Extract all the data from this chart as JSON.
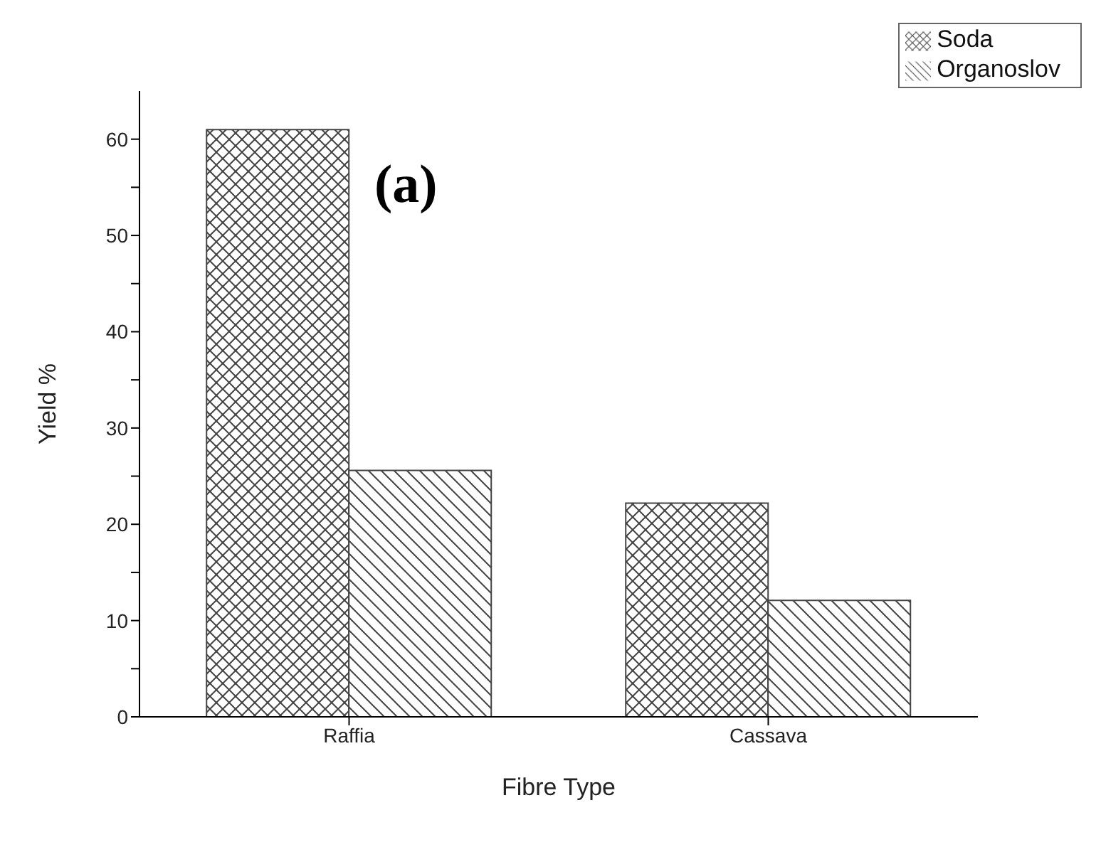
{
  "chart_data": {
    "type": "bar",
    "xlabel": "Fibre Type",
    "ylabel": "Yield %",
    "categories": [
      "Raffia",
      "Cassava"
    ],
    "series": [
      {
        "name": "Soda",
        "color": "#444444",
        "values": [
          61,
          22.2
        ]
      },
      {
        "name": "Organoslov",
        "color": "#444444",
        "values": [
          25.6,
          12.1
        ]
      }
    ],
    "ylim": [
      0,
      65
    ],
    "yticks": [
      0,
      {
        "value": 5,
        "label": null
      },
      10,
      {
        "value": 15,
        "label": null
      },
      20,
      {
        "value": 25,
        "label": null
      },
      30,
      {
        "value": 35,
        "label": null
      },
      40,
      {
        "value": 45,
        "label": null
      },
      50,
      {
        "value": 55,
        "label": null
      },
      60
    ],
    "annotations": [
      "(a)"
    ],
    "legend": "top right",
    "grid": false
  }
}
